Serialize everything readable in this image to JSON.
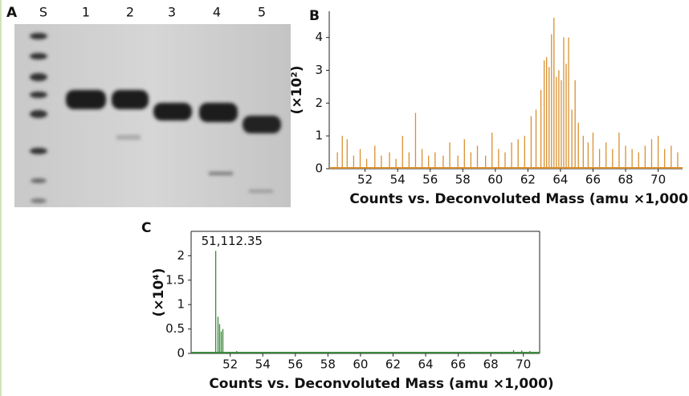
{
  "gel": {
    "panel_label": "A",
    "lanes": [
      "S",
      "1",
      "2",
      "3",
      "4",
      "5"
    ]
  },
  "chart_data": [
    {
      "type": "spectrum",
      "panel_label": "B",
      "x_label": "Counts vs. Deconvoluted Mass (amu ×1,000)",
      "y_label": "(×10²)",
      "color": "#d9902f",
      "x": [
        50.3,
        50.6,
        50.9,
        51.3,
        51.7,
        52.1,
        52.6,
        53.0,
        53.5,
        53.9,
        54.3,
        54.7,
        55.1,
        55.5,
        55.9,
        56.3,
        56.8,
        57.2,
        57.7,
        58.1,
        58.5,
        58.9,
        59.4,
        59.8,
        60.2,
        60.6,
        61.0,
        61.4,
        61.8,
        62.2,
        62.5,
        62.8,
        63.0,
        63.15,
        63.3,
        63.45,
        63.6,
        63.75,
        63.9,
        64.05,
        64.2,
        64.35,
        64.5,
        64.7,
        64.9,
        65.1,
        65.4,
        65.7,
        66.0,
        66.4,
        66.8,
        67.2,
        67.6,
        68.0,
        68.4,
        68.8,
        69.2,
        69.6,
        70.0,
        70.4,
        70.8,
        71.2
      ],
      "values": [
        0.5,
        1.0,
        0.9,
        0.4,
        0.6,
        0.3,
        0.7,
        0.4,
        0.5,
        0.3,
        1.0,
        0.5,
        1.7,
        0.6,
        0.4,
        0.5,
        0.4,
        0.8,
        0.4,
        0.9,
        0.5,
        0.7,
        0.4,
        1.1,
        0.6,
        0.5,
        0.8,
        0.9,
        1.0,
        1.6,
        1.8,
        2.4,
        3.3,
        3.4,
        3.1,
        4.1,
        4.6,
        2.8,
        3.0,
        2.7,
        4.0,
        3.2,
        4.0,
        1.8,
        2.7,
        1.4,
        1.0,
        0.8,
        1.1,
        0.6,
        0.8,
        0.6,
        1.1,
        0.7,
        0.6,
        0.5,
        0.7,
        0.9,
        1.0,
        0.6,
        0.7,
        0.5
      ],
      "xlim": [
        49.8,
        71.5
      ],
      "xticks": [
        52,
        54,
        56,
        58,
        60,
        62,
        64,
        66,
        68,
        70
      ],
      "ylim": [
        0,
        4.8
      ],
      "yticks": [
        0,
        1,
        2,
        3,
        4
      ]
    },
    {
      "type": "spectrum",
      "panel_label": "C",
      "x_label": "Counts vs. Deconvoluted Mass (amu ×1,000)",
      "y_label": "(×10⁴)",
      "annotation": "51,112.35",
      "color": "#3d8a3d",
      "x": [
        51.11,
        51.25,
        51.35,
        51.45,
        51.55,
        52.4,
        53.0,
        69.4,
        69.9,
        70.4
      ],
      "values": [
        2.1,
        0.75,
        0.6,
        0.45,
        0.5,
        0.05,
        0.02,
        0.07,
        0.06,
        0.05
      ],
      "xlim": [
        49.6,
        71.0
      ],
      "xticks": [
        52,
        54,
        56,
        58,
        60,
        62,
        64,
        66,
        68,
        70
      ],
      "ylim": [
        0,
        2.5
      ],
      "yticks": [
        0,
        0.5,
        1,
        1.5,
        2
      ]
    }
  ]
}
